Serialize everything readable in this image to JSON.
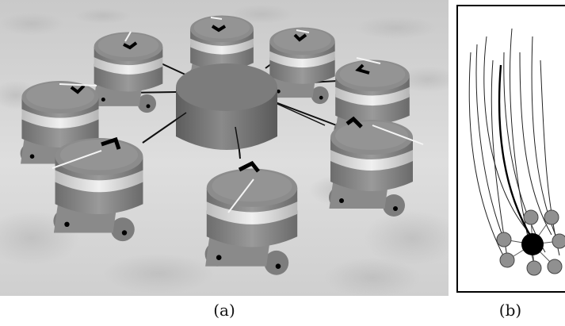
{
  "captions": {
    "a": "(a)",
    "b": "(b)"
  },
  "colors": {
    "background": "#ffffff",
    "robot_body_dark": "#7a7a7a",
    "robot_body_light": "#d7d7d7",
    "hub": "#6f6f6f",
    "marker_black": "#000000",
    "heading_line": "#f4f4f4",
    "trajectory": "#222222",
    "panel_b_node": "#909090"
  },
  "icons": {
    "robots": "cylindrical-robot-icon",
    "hub": "central-cylinder-object",
    "panel_b_center": "transported-object-disk",
    "panel_b_nodes": "robot-disk"
  }
}
